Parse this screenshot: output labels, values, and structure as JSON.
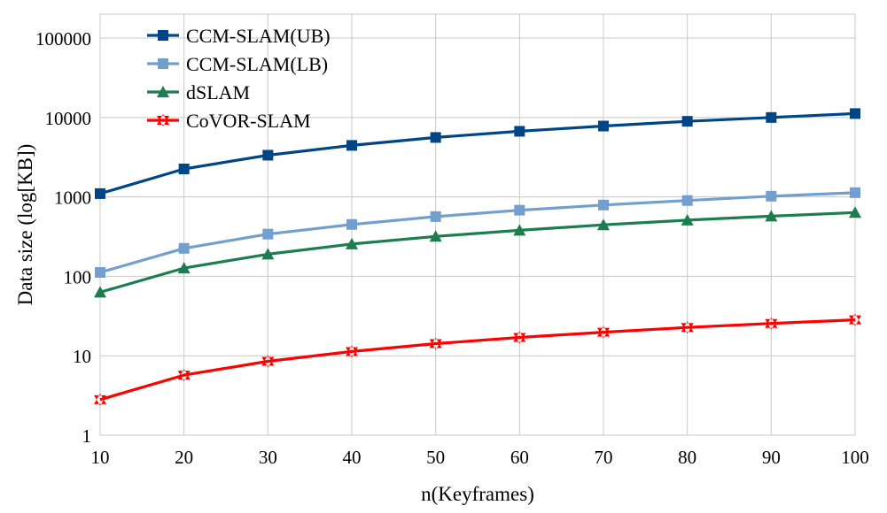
{
  "chart_data": {
    "type": "line",
    "title": "",
    "xlabel": "n(Keyframes)",
    "ylabel": "Data size (log[KB])",
    "x": [
      10,
      20,
      30,
      40,
      50,
      60,
      70,
      80,
      90,
      100
    ],
    "xlim": [
      10,
      100
    ],
    "ylim": [
      1,
      200000
    ],
    "yscale": "log",
    "yticks": [
      1,
      10,
      100,
      1000,
      10000,
      100000
    ],
    "ytick_labels": [
      "1",
      "10",
      "100",
      "1000",
      "10000",
      "100000"
    ],
    "xtick_labels": [
      "10",
      "20",
      "30",
      "40",
      "50",
      "60",
      "70",
      "80",
      "90",
      "100"
    ],
    "grid": true,
    "legend_position": "top-left",
    "series": [
      {
        "name": "CCM-SLAM(UB)",
        "color": "#004586",
        "marker": "square",
        "values": [
          1100,
          2250,
          3350,
          4450,
          5600,
          6700,
          7800,
          8950,
          10000,
          11200
        ]
      },
      {
        "name": "CCM-SLAM(LB)",
        "color": "#729fcf",
        "marker": "square",
        "values": [
          112,
          225,
          340,
          450,
          565,
          680,
          790,
          900,
          1020,
          1130
        ]
      },
      {
        "name": "dSLAM",
        "color": "#1c7d4f",
        "marker": "triangle",
        "values": [
          63,
          127,
          190,
          255,
          318,
          380,
          445,
          510,
          572,
          636
        ]
      },
      {
        "name": "CoVOR-SLAM",
        "color": "#ff0000",
        "marker": "star",
        "values": [
          2.8,
          5.7,
          8.5,
          11.3,
          14.2,
          17,
          19.8,
          22.7,
          25.5,
          28.3
        ]
      }
    ]
  }
}
